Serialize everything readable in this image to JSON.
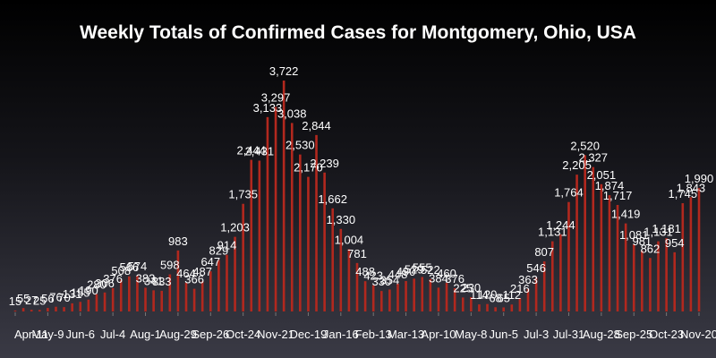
{
  "chart_data": {
    "type": "bar",
    "title": "Weekly Totals of Confirmed Cases for Montgomery, Ohio, USA",
    "xlabel": "",
    "ylabel": "",
    "ylim": [
      0,
      3722
    ],
    "grid": false,
    "colors": {
      "bar": "#b2281e",
      "text": "#ffffff"
    },
    "tick_labels": [
      "Apr-11",
      "May-9",
      "Jun-6",
      "Jul-4",
      "Aug-1",
      "Aug-29",
      "Sep-26",
      "Oct-24",
      "Nov-21",
      "Dec-19",
      "Jan-16",
      "Feb-13",
      "Mar-13",
      "Apr-10",
      "May-8",
      "Jun-5",
      "Jul-3",
      "Jul-31",
      "Aug-28",
      "Sep-25",
      "Oct-23",
      "Nov-20"
    ],
    "tick_index": [
      0,
      4,
      8,
      12,
      16,
      20,
      24,
      28,
      32,
      36,
      40,
      44,
      48,
      52,
      56,
      60,
      64,
      68,
      72,
      76,
      80,
      84
    ],
    "values": [
      15,
      55,
      27,
      25,
      56,
      76,
      70,
      131,
      155,
      190,
      280,
      306,
      376,
      508,
      566,
      574,
      383,
      341,
      333,
      598,
      983,
      464,
      366,
      487,
      647,
      829,
      914,
      1203,
      1735,
      2444,
      2431,
      3133,
      3297,
      3722,
      3038,
      2530,
      2170,
      2844,
      2239,
      1662,
      1330,
      1004,
      781,
      488,
      423,
      330,
      354,
      448,
      490,
      529,
      555,
      522,
      384,
      460,
      376,
      225,
      230,
      114,
      120,
      68,
      65,
      112,
      216,
      363,
      546,
      807,
      1131,
      1244,
      1764,
      2205,
      2520,
      2327,
      2051,
      1874,
      1717,
      1419,
      1081,
      981,
      862,
      1131,
      1181,
      954,
      1745,
      1843,
      1990
    ],
    "labels": [
      "15",
      "55",
      "27",
      "25",
      "56",
      "76",
      "70",
      "131",
      "155",
      "190",
      "280",
      "306",
      "376",
      "508",
      "566",
      "574",
      "383",
      "341",
      "333",
      "598",
      "983",
      "464",
      "366",
      "487",
      "647",
      "829",
      "914",
      "1,203",
      "1,735",
      "2,444",
      "2,431",
      "3,133",
      "3,297",
      "3,722",
      "3,038",
      "2,530",
      "2,170",
      "2,844",
      "2,239",
      "1,662",
      "1,330",
      "1,004",
      "781",
      "488",
      "423",
      "330",
      "354",
      "448",
      "490",
      "529",
      "555",
      "522",
      "384",
      "460",
      "376",
      "225",
      "230",
      "114",
      "120",
      "68",
      "65",
      "112",
      "216",
      "363",
      "546",
      "807",
      "1,131",
      "1,244",
      "1,764",
      "2,205",
      "2,520",
      "2,327",
      "2,051",
      "1,874",
      "1,717",
      "1,419",
      "1,081",
      "981",
      "862",
      "1,131",
      "1,181",
      "954",
      "1,745",
      "1,843",
      "1,990"
    ]
  }
}
